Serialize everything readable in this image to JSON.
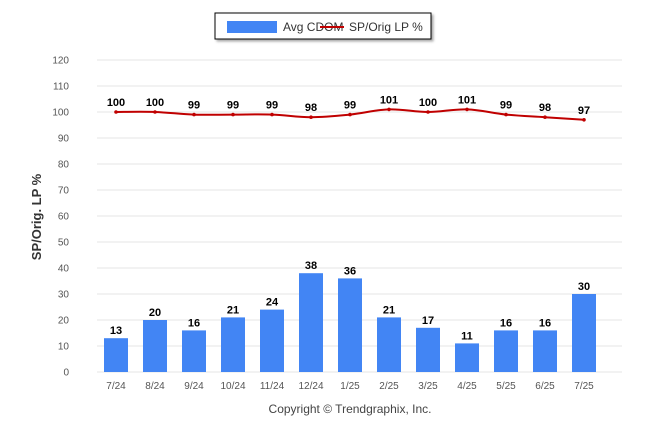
{
  "chart_data": {
    "type": "bar",
    "categories": [
      "7/24",
      "8/24",
      "9/24",
      "10/24",
      "11/24",
      "12/24",
      "1/25",
      "2/25",
      "3/25",
      "4/25",
      "5/25",
      "6/25",
      "7/25"
    ],
    "series": [
      {
        "name": "Avg CDOM",
        "type": "bar",
        "color": "#4285f4",
        "values": [
          13,
          20,
          16,
          21,
          24,
          38,
          36,
          21,
          17,
          11,
          16,
          16,
          30
        ]
      },
      {
        "name": "SP/Orig LP %",
        "type": "line",
        "color": "#c00000",
        "values": [
          100,
          100,
          99,
          99,
          99,
          98,
          99,
          101,
          100,
          101,
          99,
          98,
          97
        ]
      }
    ],
    "ylabel": "SP/Orig. LP %",
    "ylim": [
      0,
      120
    ],
    "yticks": [
      0,
      10,
      20,
      30,
      40,
      50,
      60,
      70,
      80,
      90,
      100,
      110,
      120
    ],
    "grid": true,
    "legend_position": "top-center",
    "credit": "Copyright © Trendgraphix, Inc."
  }
}
